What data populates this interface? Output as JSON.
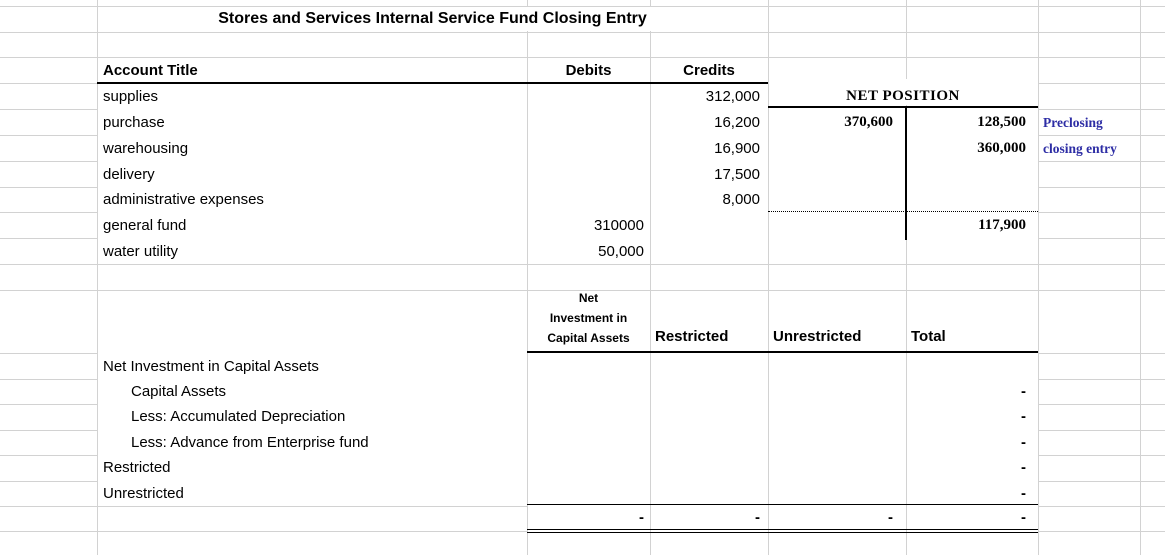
{
  "sheet": {
    "title": "Stores and Services Internal Service Fund Closing Entry",
    "closing_table": {
      "headers": {
        "account": "Account Title",
        "debits": "Debits",
        "credits": "Credits"
      },
      "rows": [
        {
          "account": "supplies",
          "debit": "",
          "credit": "312,000"
        },
        {
          "account": "purchase",
          "debit": "",
          "credit": "16,200"
        },
        {
          "account": "warehousing",
          "debit": "",
          "credit": "16,900"
        },
        {
          "account": "delivery",
          "debit": "",
          "credit": "17,500"
        },
        {
          "account": "administrative expenses",
          "debit": "",
          "credit": "8,000"
        },
        {
          "account": "general fund",
          "debit": "310000",
          "credit": ""
        },
        {
          "account": "water utility",
          "debit": "50,000",
          "credit": ""
        }
      ]
    },
    "net_position": {
      "header": "NET POSITION",
      "debit_side_total": "370,600",
      "credit_side_preclosing": "128,500",
      "credit_side_closing": "360,000",
      "credit_side_balance": "117,900",
      "annotations": {
        "preclosing": "Preclosing",
        "closing": "closing entry",
        "text_color": "#2d2da5"
      }
    },
    "position_table": {
      "col_headers": {
        "nica_line1": "Net",
        "nica_line2": "Investment in",
        "nica_line3": "Capital Assets",
        "restricted": "Restricted",
        "unrestricted": "Unrestricted",
        "total": "Total"
      },
      "rows": [
        {
          "label": "Net Investment in Capital Assets",
          "indent": false,
          "total": ""
        },
        {
          "label": "Capital Assets",
          "indent": true,
          "total": "-"
        },
        {
          "label": "Less: Accumulated Depreciation",
          "indent": true,
          "total": "-"
        },
        {
          "label": "Less: Advance from Enterprise fund",
          "indent": true,
          "total": "-"
        },
        {
          "label": "Restricted",
          "indent": false,
          "total": "-"
        },
        {
          "label": "Unrestricted",
          "indent": false,
          "total": "-"
        }
      ],
      "totals_row": {
        "nica": "-",
        "restricted": "-",
        "unrestricted": "-",
        "total": "-"
      }
    }
  }
}
